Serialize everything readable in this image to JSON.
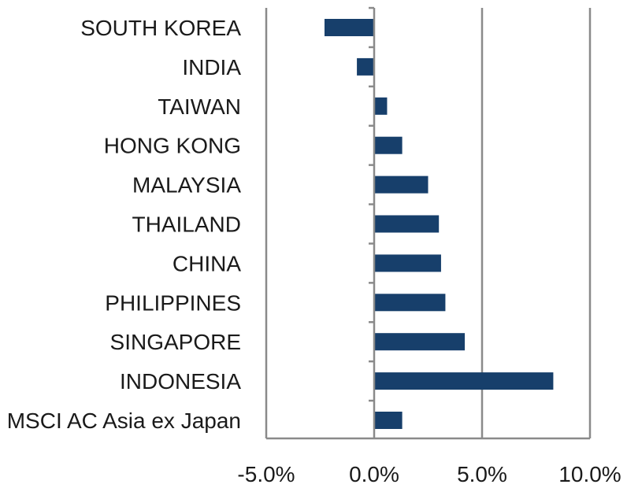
{
  "chart_data": {
    "type": "bar",
    "orientation": "horizontal",
    "title": "",
    "xlabel": "",
    "ylabel": "",
    "categories": [
      "SOUTH KOREA",
      "INDIA",
      "TAIWAN",
      "HONG KONG",
      "MALAYSIA",
      "THAILAND",
      "CHINA",
      "PHILIPPINES",
      "SINGAPORE",
      "INDONESIA",
      "MSCI AC Asia ex Japan"
    ],
    "values": [
      -2.3,
      -0.8,
      0.6,
      1.3,
      2.5,
      3.0,
      3.1,
      3.3,
      4.2,
      8.3,
      1.3
    ],
    "xlim": [
      -5.0,
      10.0
    ],
    "xticks": [
      -5.0,
      0.0,
      5.0,
      10.0
    ],
    "xtick_labels": [
      "-5.0%",
      "0.0%",
      "5.0%",
      "10.0%"
    ],
    "grid": "vertical",
    "legend": "none",
    "bar_color": "#173f6b",
    "grid_color": "#8a8a8a"
  }
}
